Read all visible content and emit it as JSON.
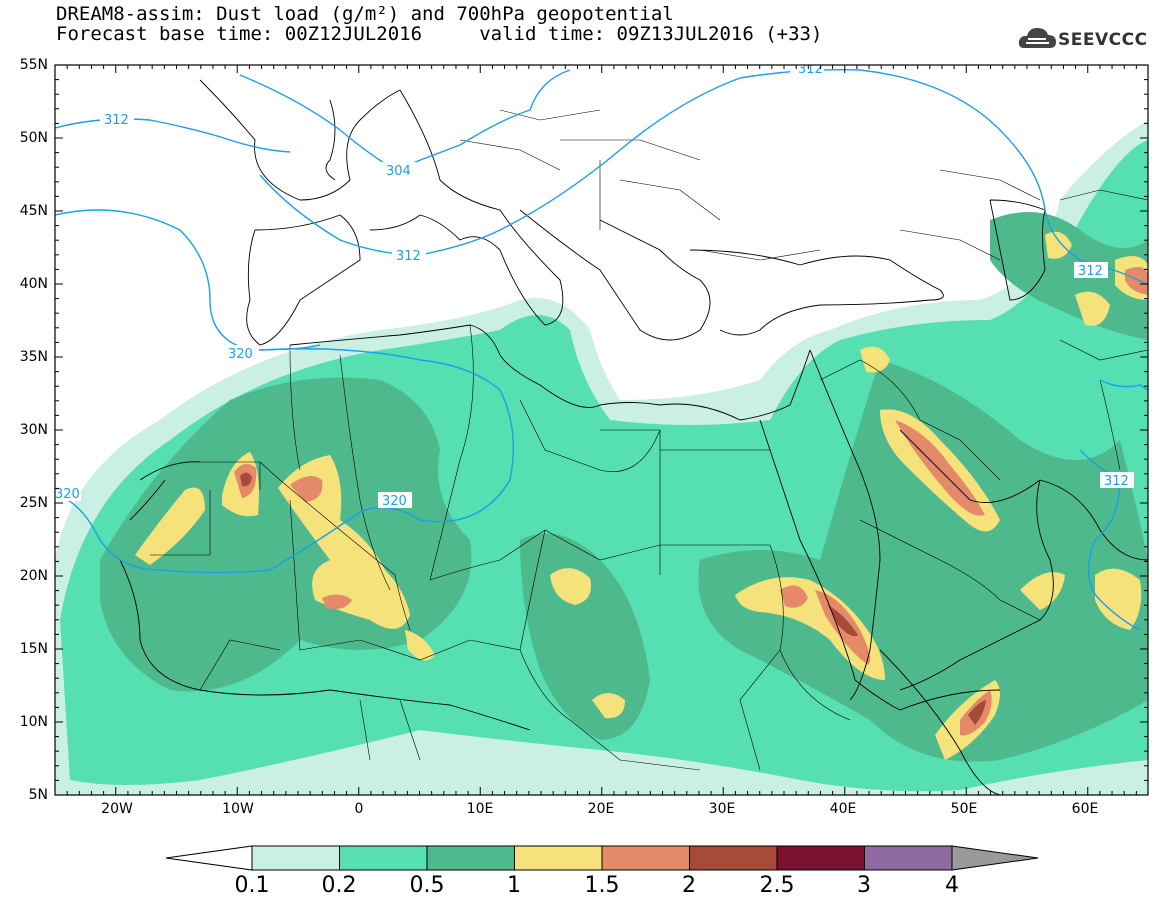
{
  "header": {
    "line1": "DREAM8-assim: Dust load (g/m²) and 700hPa geopotential",
    "line2": "Forecast base time: 00Z12JUL2016     valid time: 09Z13JUL2016 (+33)"
  },
  "logo": {
    "text": "SEEVCCC",
    "icon": "cloud-icon"
  },
  "axes": {
    "lat_labels": [
      "55N",
      "50N",
      "45N",
      "40N",
      "35N",
      "30N",
      "25N",
      "20N",
      "15N",
      "10N",
      "5N"
    ],
    "lon_labels": [
      "20W",
      "10W",
      "0",
      "10E",
      "20E",
      "30E",
      "40E",
      "50E",
      "60E"
    ]
  },
  "contours": {
    "labels": [
      "312",
      "304",
      "312",
      "320",
      "320",
      "320",
      "312",
      "312",
      "312"
    ]
  },
  "colorbar": {
    "labels": [
      "0.1",
      "0.2",
      "0.5",
      "1",
      "1.5",
      "2",
      "2.5",
      "3",
      "4"
    ],
    "colors": [
      "#c9f0e2",
      "#56dfb0",
      "#4fb98e",
      "#f5e27a",
      "#e58a68",
      "#a84a3a",
      "#7a1230",
      "#8e6aa0"
    ],
    "colors_full": [
      "#c9f0e2",
      "#56dfb0",
      "#4fb98e",
      "#f5e27a",
      "#e58a68",
      "#a84a3a",
      "#7a1230",
      "#8e6aa0",
      "#9a9a9a"
    ]
  },
  "map_colors": {
    "light": "#c9f0e2",
    "mid": "#56dfb0",
    "dark": "#4fb98e",
    "yellow": "#f5e27a",
    "orange": "#e58a68",
    "brown": "#a84a3a",
    "maroon": "#7a1230",
    "contour": "#1aa0e6"
  }
}
